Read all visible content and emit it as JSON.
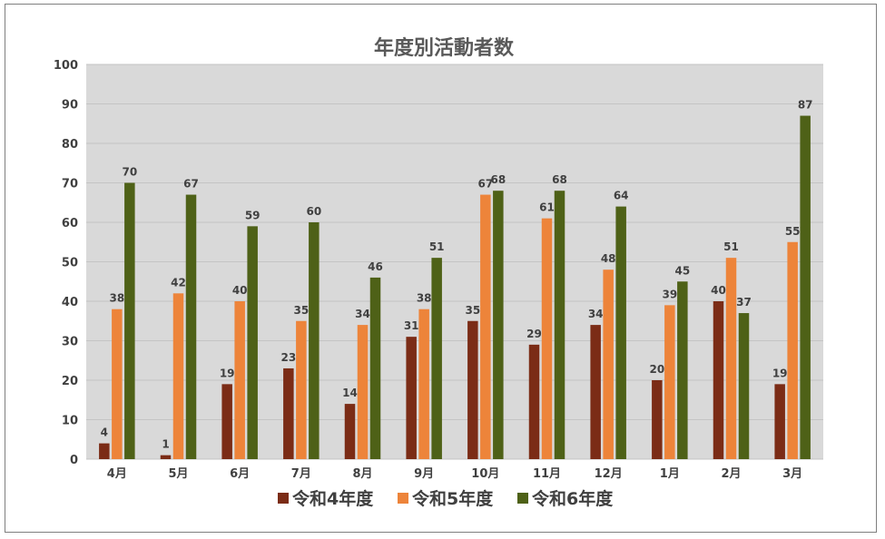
{
  "chart_data": {
    "type": "bar",
    "title": "年度別活動者数",
    "categories": [
      "4月",
      "5月",
      "6月",
      "7月",
      "8月",
      "9月",
      "10月",
      "11月",
      "12月",
      "1月",
      "2月",
      "3月"
    ],
    "series": [
      {
        "name": "令和4年度",
        "color": "#7b2c16",
        "values": [
          4,
          1,
          19,
          23,
          14,
          31,
          35,
          29,
          34,
          20,
          40,
          19
        ]
      },
      {
        "name": "令和5年度",
        "color": "#ed843a",
        "values": [
          38,
          42,
          40,
          35,
          34,
          38,
          67,
          61,
          48,
          39,
          51,
          55
        ]
      },
      {
        "name": "令和6年度",
        "color": "#4e6117",
        "values": [
          70,
          67,
          59,
          60,
          46,
          51,
          68,
          68,
          64,
          45,
          37,
          87
        ]
      }
    ],
    "ylim": [
      0,
      100
    ],
    "yticks": [
      0,
      10,
      20,
      30,
      40,
      50,
      60,
      70,
      80,
      90,
      100
    ],
    "grid": true,
    "legend_position": "bottom",
    "plot_background": "#d9d9d9"
  }
}
